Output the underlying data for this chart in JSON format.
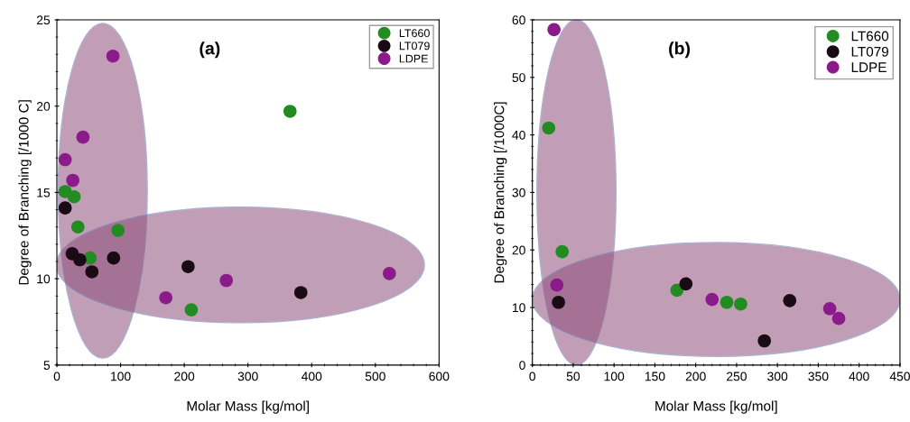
{
  "chart_data": [
    {
      "type": "scatter",
      "xlabel": "Molar Mass [kg/mol]",
      "ylabel": "Degree of Branching [/1000 C]",
      "annotations": [
        "(a)"
      ],
      "xlim": [
        0,
        600
      ],
      "xticks": [
        0,
        100,
        200,
        300,
        400,
        500,
        600
      ],
      "ylim": [
        5,
        25
      ],
      "yticks": [
        5,
        10,
        15,
        20,
        25
      ],
      "grid": false,
      "legend": "top right",
      "marker": "circle",
      "series": [
        {
          "name": "LT660",
          "color": "#228b22",
          "x": [
            13,
            27,
            33,
            96,
            52,
            211,
            366
          ],
          "values": [
            15.05,
            14.75,
            13.0,
            12.8,
            11.2,
            8.2,
            19.7
          ]
        },
        {
          "name": "LT079",
          "color": "#1a0a14",
          "x": [
            13,
            24,
            36,
            55,
            89,
            206,
            383
          ],
          "values": [
            14.1,
            11.45,
            11.1,
            10.4,
            11.2,
            10.7,
            9.2
          ]
        },
        {
          "name": "LDPE",
          "color": "#8b1a8b",
          "x": [
            88,
            41,
            13,
            25,
            171,
            266,
            522
          ],
          "values": [
            22.9,
            18.2,
            16.9,
            15.7,
            8.9,
            9.9,
            10.3
          ]
        }
      ]
    },
    {
      "type": "scatter",
      "xlabel": "Molar Mass [kg/mol]",
      "ylabel": "Degree of Branching [/1000C]",
      "annotations": [
        "(b)"
      ],
      "xlim": [
        0,
        450
      ],
      "xticks": [
        0,
        50,
        100,
        150,
        200,
        250,
        300,
        350,
        400,
        450
      ],
      "ylim": [
        0,
        60
      ],
      "yticks": [
        0,
        10,
        20,
        30,
        40,
        50,
        60
      ],
      "grid": false,
      "legend": "top right",
      "marker": "circle",
      "series": [
        {
          "name": "LT660",
          "color": "#228b22",
          "x": [
            20,
            36.5,
            177,
            238,
            255
          ],
          "values": [
            41.2,
            19.7,
            13.0,
            10.9,
            10.6
          ]
        },
        {
          "name": "LT079",
          "color": "#1a0a14",
          "x": [
            32,
            188,
            315,
            284
          ],
          "values": [
            10.9,
            14.1,
            11.2,
            4.2
          ]
        },
        {
          "name": "LDPE",
          "color": "#8b1a8b",
          "x": [
            26.5,
            30,
            220,
            364,
            375
          ],
          "values": [
            58.3,
            13.9,
            11.4,
            9.8,
            8.1
          ]
        }
      ]
    }
  ]
}
